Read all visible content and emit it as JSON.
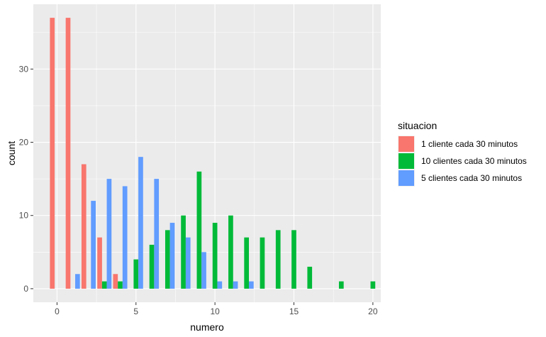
{
  "chart_data": {
    "type": "bar",
    "xlabel": "numero",
    "ylabel": "count",
    "xlim": [
      -1.5,
      20.5
    ],
    "ylim": [
      -1.85,
      38.85
    ],
    "x_ticks": [
      0,
      5,
      10,
      15,
      20
    ],
    "y_ticks": [
      0,
      10,
      20,
      30
    ],
    "grid": true,
    "legend": {
      "title": "situacion",
      "position": "right"
    },
    "series": [
      {
        "name": "1 cliente cada 30 minutos",
        "color": "#F8766D",
        "x": [
          0,
          1,
          2,
          3,
          4
        ],
        "values": [
          37,
          37,
          17,
          7,
          2
        ]
      },
      {
        "name": "10 clientes cada 30 minutos",
        "color": "#00BA38",
        "x": [
          3,
          4,
          5,
          6,
          7,
          8,
          9,
          10,
          11,
          12,
          13,
          14,
          15,
          16,
          18,
          20
        ],
        "values": [
          1,
          1,
          4,
          6,
          8,
          10,
          16,
          9,
          10,
          7,
          7,
          8,
          8,
          3,
          1,
          1
        ]
      },
      {
        "name": "5 clientes cada 30 minutos",
        "color": "#619CFF",
        "x": [
          1,
          2,
          3,
          4,
          5,
          6,
          7,
          8,
          9,
          10,
          11,
          12
        ],
        "values": [
          2,
          12,
          15,
          14,
          18,
          15,
          9,
          7,
          5,
          1,
          1,
          1
        ]
      }
    ]
  }
}
